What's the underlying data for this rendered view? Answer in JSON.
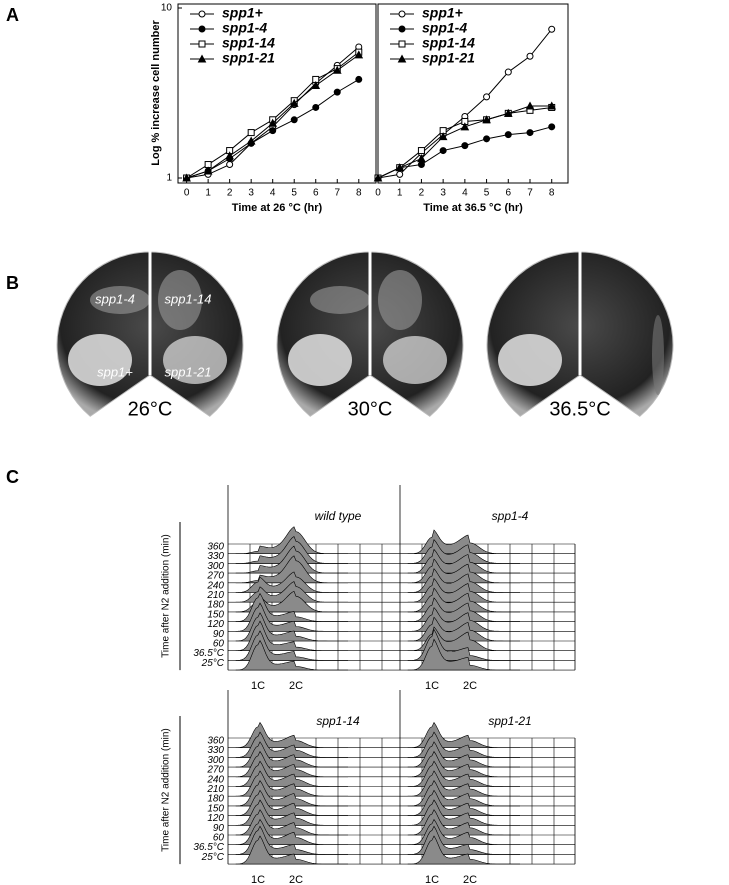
{
  "panel_labels": [
    "A",
    "B",
    "C"
  ],
  "chart_data": [
    {
      "type": "line",
      "log_y": true,
      "x": [
        0,
        1,
        2,
        3,
        4,
        5,
        6,
        7,
        8
      ],
      "xlim": [
        -0.4,
        8.8
      ],
      "xticks": [
        0,
        1,
        2,
        3,
        4,
        5,
        6,
        7,
        8
      ],
      "ylim": [
        1,
        10
      ],
      "yticks": [
        1,
        10
      ],
      "y_label": "Log % increase cell number",
      "x_label": "Time at 26 °C (hr)",
      "legend": "upper left",
      "series": [
        {
          "name": "spp1+",
          "color": "#000000",
          "marker": "open-circle",
          "values": [
            1,
            1.05,
            1.2,
            1.6,
            2.0,
            2.7,
            3.6,
            4.6,
            5.9
          ]
        },
        {
          "name": "spp1-4",
          "color": "#000000",
          "marker": "filled-circle",
          "values": [
            1,
            1.1,
            1.3,
            1.6,
            1.9,
            2.2,
            2.6,
            3.2,
            3.8
          ]
        },
        {
          "name": "spp1-14",
          "color": "#000000",
          "marker": "open-square",
          "values": [
            1,
            1.2,
            1.45,
            1.85,
            2.2,
            2.85,
            3.8,
            4.4,
            5.5
          ]
        },
        {
          "name": "spp1-21",
          "color": "#000000",
          "marker": "filled-triangle",
          "values": [
            1,
            1.1,
            1.35,
            1.65,
            2.1,
            2.75,
            3.5,
            4.3,
            5.3
          ]
        }
      ]
    },
    {
      "type": "line",
      "log_y": true,
      "x": [
        0,
        1,
        2,
        3,
        4,
        5,
        6,
        7,
        8
      ],
      "xlim": [
        0,
        8.75
      ],
      "xticks": [
        0,
        1,
        2,
        3,
        4,
        5,
        6,
        7,
        8
      ],
      "ylim": [
        1,
        10
      ],
      "x_label": "Time at 36.5 °C (hr)",
      "legend": "upper left",
      "series": [
        {
          "name": "spp1+",
          "color": "#000000",
          "marker": "open-circle",
          "values": [
            1,
            1.05,
            1.4,
            1.8,
            2.3,
            3.0,
            4.2,
            5.2,
            7.5
          ]
        },
        {
          "name": "spp1-4",
          "color": "#000000",
          "marker": "filled-circle",
          "values": [
            1,
            1.15,
            1.2,
            1.45,
            1.55,
            1.7,
            1.8,
            1.85,
            2.0
          ]
        },
        {
          "name": "spp1-14",
          "color": "#000000",
          "marker": "open-square",
          "values": [
            1,
            1.15,
            1.45,
            1.9,
            2.15,
            2.2,
            2.4,
            2.5,
            2.6
          ]
        },
        {
          "name": "spp1-21",
          "color": "#000000",
          "marker": "filled-triangle",
          "values": [
            1,
            1.15,
            1.3,
            1.75,
            2.0,
            2.2,
            2.4,
            2.65,
            2.65
          ]
        }
      ]
    }
  ],
  "panel_b": {
    "plates": [
      {
        "temperature": "26°C",
        "strains": [
          "spp1-4",
          "spp1-14",
          "spp1+",
          "spp1-21"
        ]
      },
      {
        "temperature": "30°C"
      },
      {
        "temperature": "36.5°C"
      }
    ]
  },
  "panel_c": {
    "y_label": "Time after N2 addition (min)",
    "rows": [
      "360",
      "330",
      "300",
      "270",
      "240",
      "210",
      "180",
      "150",
      "120",
      "90",
      "60",
      "36.5°C",
      "25°C"
    ],
    "dna_labels": [
      "1C",
      "2C"
    ],
    "strains": [
      "wild type",
      "spp1-4",
      "spp1-14",
      "spp1-21"
    ]
  }
}
